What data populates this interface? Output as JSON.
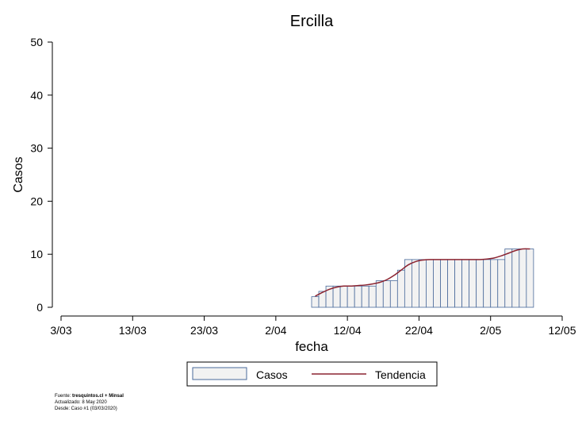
{
  "chart_data": {
    "type": "bar",
    "title": "Ercilla",
    "xlabel": "fecha",
    "ylabel": "Casos",
    "xlim": [
      0,
      70
    ],
    "ylim": [
      0,
      50
    ],
    "x_ticks": [
      {
        "pos": 0,
        "label": "3/03"
      },
      {
        "pos": 10,
        "label": "13/03"
      },
      {
        "pos": 20,
        "label": "23/03"
      },
      {
        "pos": 30,
        "label": "2/04"
      },
      {
        "pos": 40,
        "label": "12/04"
      },
      {
        "pos": 50,
        "label": "22/04"
      },
      {
        "pos": 60,
        "label": "2/05"
      },
      {
        "pos": 70,
        "label": "12/05"
      }
    ],
    "y_ticks": [
      0,
      10,
      20,
      30,
      40,
      50
    ],
    "series": [
      {
        "name": "Casos",
        "x": [
          35,
          36,
          37,
          38,
          39,
          40,
          41,
          42,
          43,
          44,
          45,
          46,
          47,
          48,
          49,
          50,
          51,
          52,
          53,
          54,
          55,
          56,
          57,
          58,
          59,
          60,
          61,
          62,
          63,
          64,
          65
        ],
        "values": [
          2,
          3,
          4,
          4,
          4,
          4,
          4,
          4,
          4,
          5,
          5,
          5,
          7,
          9,
          9,
          9,
          9,
          9,
          9,
          9,
          9,
          9,
          9,
          9,
          9,
          9,
          9,
          11,
          11,
          11,
          11
        ]
      },
      {
        "name": "Tendencia",
        "x": [
          35,
          36,
          37,
          38,
          39,
          40,
          41,
          42,
          43,
          44,
          45,
          46,
          47,
          48,
          49,
          50,
          51,
          52,
          53,
          54,
          55,
          56,
          57,
          58,
          59,
          60,
          61,
          62,
          63,
          64,
          65
        ],
        "values": [
          2.1,
          2.8,
          3.4,
          3.8,
          4.0,
          4.0,
          4.1,
          4.2,
          4.4,
          4.7,
          5.2,
          6.0,
          7.0,
          8.0,
          8.6,
          8.9,
          9.0,
          9.0,
          9.0,
          9.0,
          9.0,
          9.0,
          9.0,
          9.0,
          9.1,
          9.3,
          9.7,
          10.2,
          10.7,
          11.0,
          11.0
        ]
      }
    ],
    "colors": {
      "bar_fill": "#f2f2f2",
      "bar_stroke": "#4a6a9b",
      "trend": "#8b2330"
    },
    "legend": {
      "position": "bottom",
      "items": [
        "Casos",
        "Tendencia"
      ]
    }
  },
  "footnote": {
    "source_prefix": "Fuente: ",
    "source_bold": "tresquintos.cl + Minsal",
    "updated": "Actualizado: 8 May 2020",
    "since": "Desde: Caso #1  (03/03/2020)"
  }
}
